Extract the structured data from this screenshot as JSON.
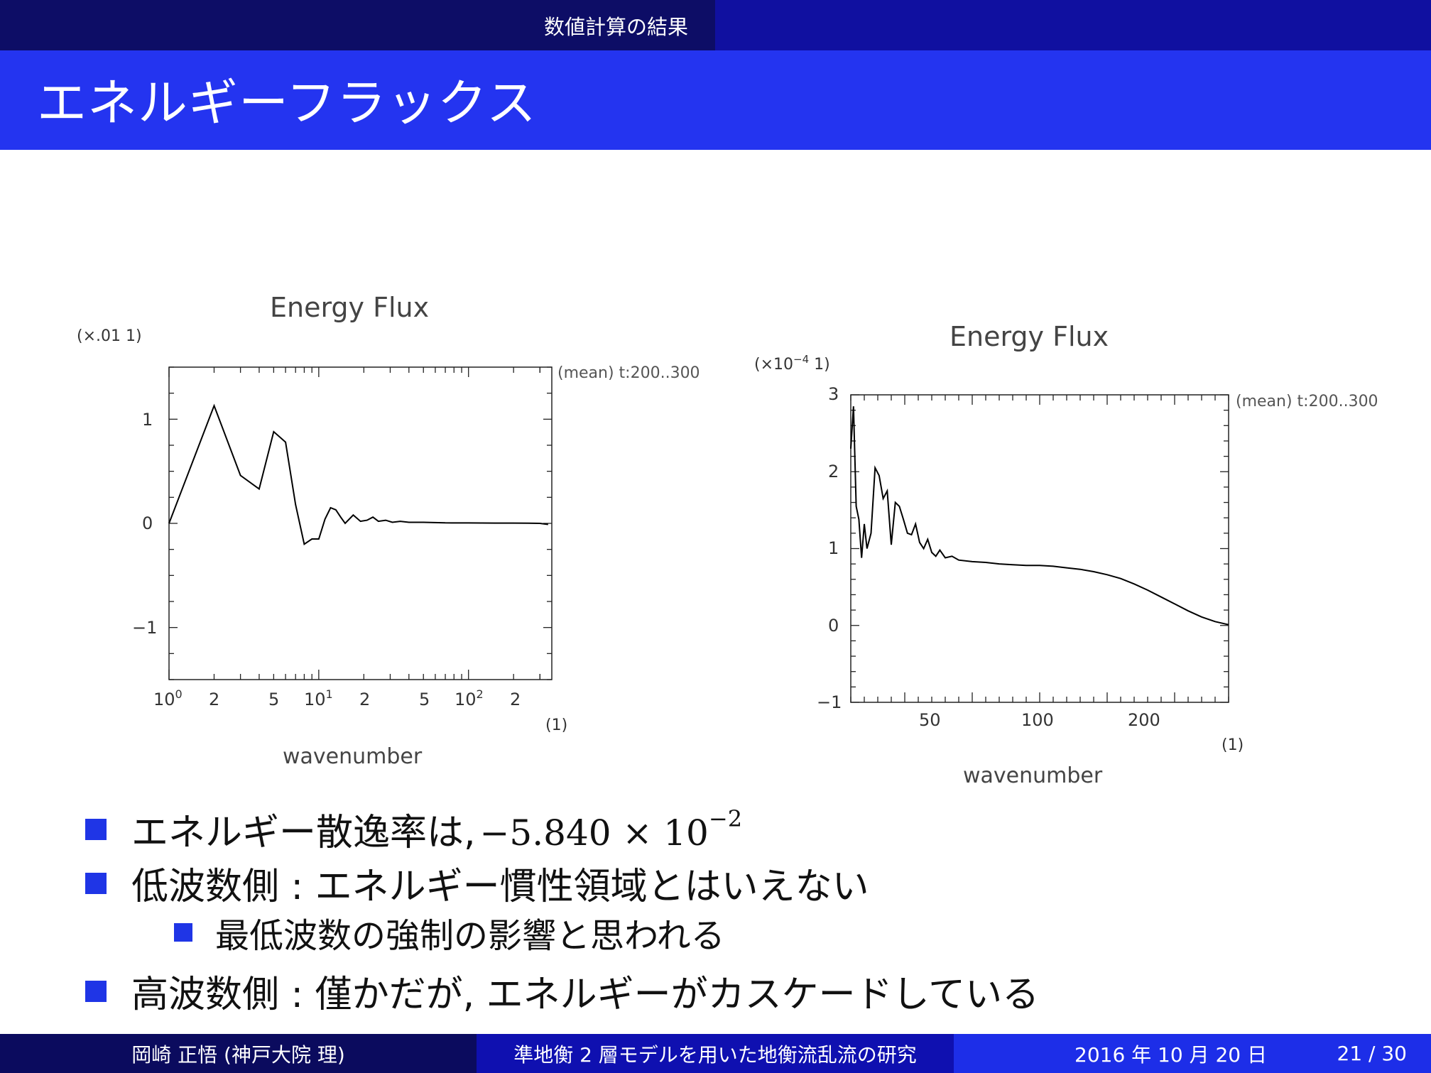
{
  "header": {
    "section": "数値計算の結果",
    "title": "エネルギーフラックス"
  },
  "plot_left": {
    "title": "Energy Flux",
    "scale_label": "(×.01  1)",
    "legend": "(mean) t:200..300",
    "xlabel": "wavenumber",
    "xunit": "(1)",
    "yticks": [
      "1",
      "0",
      "−1"
    ],
    "xticks_pre": [
      "10",
      "10",
      "10"
    ],
    "xticks_exp": [
      "0",
      "1",
      "2"
    ],
    "xticks_plain": [
      "2",
      "5",
      "2",
      "5",
      "2"
    ]
  },
  "plot_right": {
    "title": "Energy Flux",
    "scale_label_pre": "(×10",
    "scale_label_exp": "−4",
    "scale_label_post": " 1)",
    "legend": "(mean) t:200..300",
    "xlabel": "wavenumber",
    "xunit": "(1)",
    "yticks": [
      "3",
      "2",
      "1",
      "0",
      "−1"
    ],
    "xticks": [
      "50",
      "100",
      "200"
    ]
  },
  "chart_data": [
    {
      "type": "line",
      "title": "Energy Flux",
      "xlabel": "wavenumber",
      "ylabel": "",
      "xscale": "log",
      "xlim": [
        1,
        360
      ],
      "ylim": [
        -1.5,
        1.5
      ],
      "y_multiplier": "×.01",
      "grid": false,
      "legend_placement": "top-right",
      "series": [
        {
          "name": "(mean) t:200..300",
          "x": [
            1,
            2,
            3,
            4,
            5,
            6,
            7,
            8,
            9,
            10,
            11,
            12,
            13,
            14,
            15,
            17,
            19,
            21,
            23,
            25,
            28,
            31,
            35,
            40,
            50,
            70,
            100,
            150,
            200,
            250,
            300,
            340
          ],
          "y": [
            0.0,
            1.13,
            0.46,
            0.33,
            0.88,
            0.78,
            0.18,
            -0.2,
            -0.15,
            -0.15,
            0.04,
            0.15,
            0.13,
            0.06,
            0.0,
            0.08,
            0.02,
            0.03,
            0.06,
            0.02,
            0.03,
            0.01,
            0.02,
            0.01,
            0.01,
            0.005,
            0.004,
            0.003,
            0.003,
            0.002,
            0.0,
            -0.01
          ]
        }
      ]
    },
    {
      "type": "line",
      "title": "Energy Flux",
      "xlabel": "wavenumber",
      "ylabel": "",
      "xlim": [
        10,
        290
      ],
      "ylim": [
        -1,
        3
      ],
      "y_multiplier": "×10^-4",
      "grid": false,
      "legend_placement": "top-right",
      "series": [
        {
          "name": "(mean) t:200..300",
          "x": [
            10,
            12,
            14,
            16,
            18,
            20,
            22,
            25,
            28,
            31,
            34,
            37,
            40,
            43,
            46,
            49,
            52,
            55,
            58,
            61,
            64,
            67,
            70,
            73,
            76,
            80,
            85,
            90,
            100,
            110,
            120,
            130,
            140,
            150,
            160,
            170,
            180,
            190,
            200,
            210,
            220,
            230,
            240,
            250,
            260,
            270,
            280,
            290
          ],
          "y": [
            2.3,
            2.85,
            1.55,
            1.38,
            0.88,
            1.32,
            1.0,
            1.2,
            2.05,
            1.95,
            1.65,
            1.75,
            1.05,
            1.6,
            1.55,
            1.38,
            1.2,
            1.18,
            1.32,
            1.08,
            1.0,
            1.12,
            0.95,
            0.9,
            0.98,
            0.88,
            0.9,
            0.85,
            0.83,
            0.82,
            0.8,
            0.79,
            0.78,
            0.78,
            0.77,
            0.75,
            0.73,
            0.7,
            0.66,
            0.61,
            0.54,
            0.46,
            0.37,
            0.28,
            0.19,
            0.11,
            0.05,
            0.01
          ]
        }
      ]
    }
  ],
  "bullets": {
    "b1_text": "エネルギー散逸率は,",
    "b1_math": "−5.840 × 10",
    "b1_exp": "−2",
    "b2_text": "低波数側 : エネルギー慣性領域とはいえない",
    "b3_text": "最低波数の強制の影響と思われる",
    "b4_text": "高波数側 : 僅かだが, エネルギーがカスケードしている"
  },
  "footer": {
    "author": "岡崎 正悟 (神戸大院 理)",
    "talk_title": "準地衡 2 層モデルを用いた地衡流乱流の研究",
    "date": "2016 年 10 月 20 日",
    "page": "21 / 30"
  },
  "colors": {
    "title_bar": "#2434f0",
    "top_bar_left": "#0d0d66",
    "bullet_marker": "#1f35e6"
  }
}
